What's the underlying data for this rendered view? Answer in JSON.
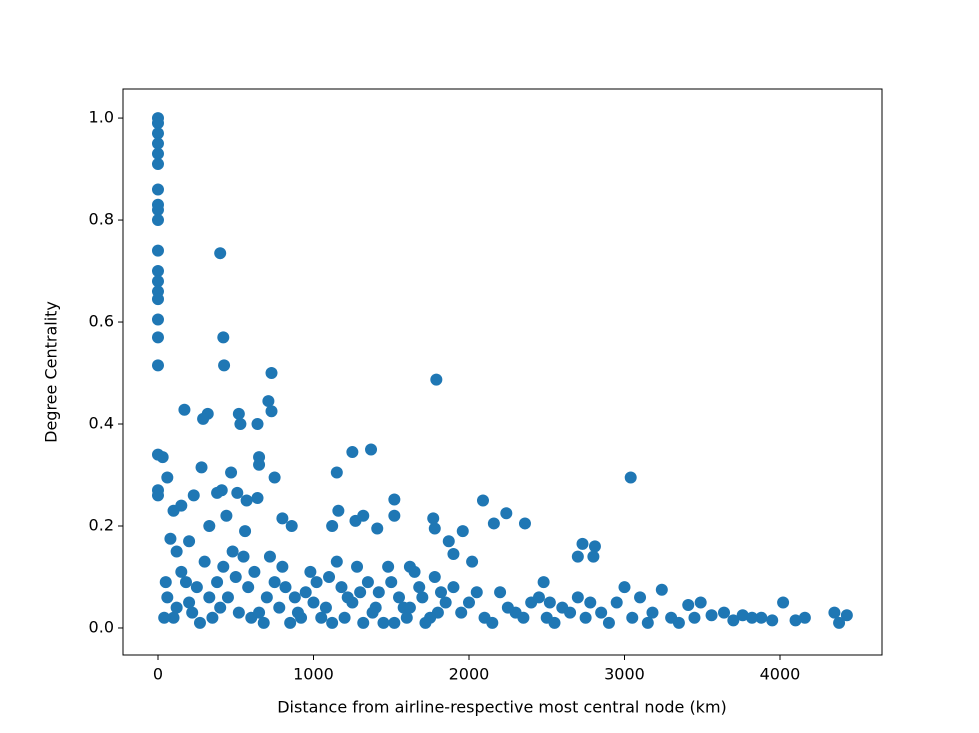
{
  "chart_data": {
    "type": "scatter",
    "xlabel": "Distance from airline-respective most central node (km)",
    "ylabel": "Degree Centrality",
    "color": "#1f77b4",
    "xlim": [
      -225,
      4656
    ],
    "ylim": [
      -0.053,
      1.057
    ],
    "xticks": [
      0,
      1000,
      2000,
      3000,
      4000
    ],
    "yticks": [
      {
        "value": 0,
        "label": "0.0"
      },
      0.2,
      0.4,
      0.6,
      0.8,
      {
        "value": 1,
        "label": "1.0"
      }
    ],
    "x": [
      0,
      0,
      0,
      0,
      0,
      0,
      0,
      0,
      0,
      0,
      0,
      0,
      0,
      0,
      0,
      0,
      0,
      0,
      0,
      0,
      0,
      400,
      420,
      425,
      730,
      1790,
      170,
      710,
      730,
      320,
      290,
      520,
      530,
      640,
      1250,
      1370,
      30,
      650,
      650,
      280,
      1150,
      3040,
      750,
      60,
      470,
      410,
      380,
      640,
      1520,
      2090,
      230,
      510,
      570,
      2240,
      2160,
      2360,
      1160,
      1520,
      1770,
      1780,
      1870,
      1960,
      1270,
      1320,
      1410,
      1120,
      800,
      860,
      100,
      150,
      80,
      120,
      200,
      330,
      440,
      560,
      2020,
      2730,
      2810,
      2700,
      2800,
      1900,
      1620,
      2480,
      3240,
      3000,
      3410,
      3490,
      3640,
      3760,
      3880,
      4020,
      4160,
      4350,
      4430,
      4380,
      4100,
      3950,
      3820,
      3700,
      3560,
      3300,
      3180,
      2950,
      2850,
      2700,
      2600,
      2500,
      2400,
      2300,
      2200,
      2100,
      2000,
      1900,
      1800,
      1700,
      1600,
      1500,
      1400,
      1300,
      1200,
      1100,
      1000,
      900,
      800,
      700,
      600,
      500,
      400,
      300,
      200,
      100,
      50,
      250,
      350,
      450,
      550,
      650,
      750,
      850,
      950,
      1050,
      1150,
      1250,
      1350,
      1450,
      1550,
      1650,
      1750,
      1850,
      1950,
      2050,
      2150,
      2250,
      2350,
      2450,
      2550,
      2650,
      2750,
      2900,
      3050,
      3150,
      3350,
      3450,
      150,
      220,
      380,
      480,
      620,
      720,
      880,
      980,
      1080,
      1180,
      1280,
      1380,
      1480,
      1580,
      1680,
      1780,
      40,
      60,
      120,
      180,
      270,
      330,
      420,
      520,
      580,
      680,
      780,
      820,
      920,
      1020,
      1120,
      1220,
      1320,
      1420,
      1520,
      1620,
      1720,
      1820,
      2520,
      3100,
      2780
    ],
    "values": [
      1.0,
      0.99,
      0.97,
      0.95,
      0.93,
      0.91,
      0.86,
      0.83,
      0.82,
      0.8,
      0.74,
      0.7,
      0.68,
      0.66,
      0.645,
      0.605,
      0.57,
      0.515,
      0.34,
      0.27,
      0.26,
      0.735,
      0.57,
      0.515,
      0.5,
      0.487,
      0.428,
      0.445,
      0.425,
      0.42,
      0.41,
      0.42,
      0.4,
      0.4,
      0.345,
      0.35,
      0.335,
      0.335,
      0.32,
      0.315,
      0.305,
      0.295,
      0.295,
      0.295,
      0.305,
      0.27,
      0.265,
      0.255,
      0.252,
      0.25,
      0.26,
      0.265,
      0.25,
      0.225,
      0.205,
      0.205,
      0.23,
      0.22,
      0.215,
      0.195,
      0.17,
      0.19,
      0.21,
      0.22,
      0.195,
      0.2,
      0.215,
      0.2,
      0.23,
      0.24,
      0.175,
      0.15,
      0.17,
      0.2,
      0.22,
      0.19,
      0.13,
      0.165,
      0.16,
      0.14,
      0.14,
      0.145,
      0.12,
      0.09,
      0.075,
      0.08,
      0.045,
      0.05,
      0.03,
      0.025,
      0.02,
      0.05,
      0.02,
      0.03,
      0.025,
      0.01,
      0.015,
      0.015,
      0.02,
      0.015,
      0.025,
      0.02,
      0.03,
      0.05,
      0.03,
      0.06,
      0.04,
      0.02,
      0.05,
      0.03,
      0.07,
      0.02,
      0.05,
      0.08,
      0.03,
      0.06,
      0.02,
      0.09,
      0.04,
      0.07,
      0.02,
      0.1,
      0.05,
      0.03,
      0.12,
      0.06,
      0.02,
      0.1,
      0.04,
      0.13,
      0.05,
      0.02,
      0.09,
      0.08,
      0.02,
      0.06,
      0.14,
      0.03,
      0.09,
      0.01,
      0.07,
      0.02,
      0.13,
      0.05,
      0.09,
      0.01,
      0.06,
      0.11,
      0.02,
      0.05,
      0.03,
      0.07,
      0.01,
      0.04,
      0.02,
      0.06,
      0.01,
      0.03,
      0.02,
      0.01,
      0.02,
      0.01,
      0.01,
      0.02,
      0.11,
      0.03,
      0.09,
      0.15,
      0.11,
      0.14,
      0.06,
      0.11,
      0.04,
      0.08,
      0.12,
      0.03,
      0.12,
      0.04,
      0.08,
      0.1,
      0.02,
      0.06,
      0.04,
      0.09,
      0.01,
      0.06,
      0.12,
      0.03,
      0.08,
      0.01,
      0.04,
      0.08,
      0.02,
      0.09,
      0.01,
      0.06,
      0.01,
      0.07,
      0.01,
      0.04,
      0.01,
      0.07,
      0.05,
      0.06,
      0.05
    ]
  }
}
